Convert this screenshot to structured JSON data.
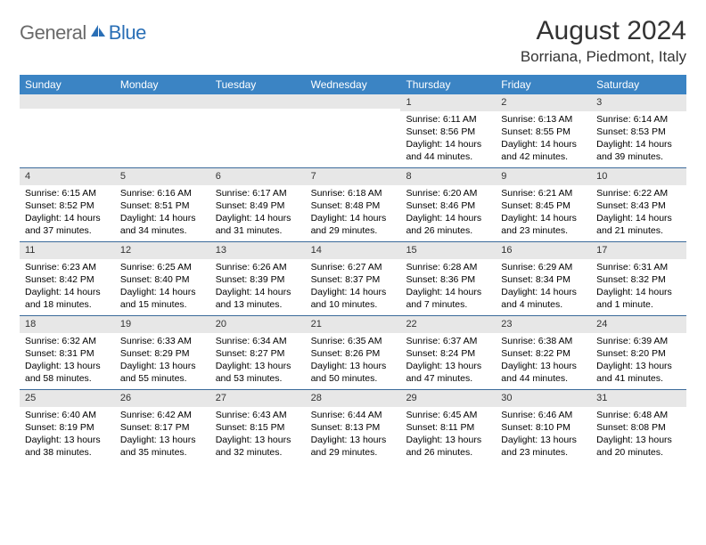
{
  "brand_gray": "General",
  "brand_blue": "Blue",
  "month_title": "August 2024",
  "location": "Borriana, Piedmont, Italy",
  "day_labels": [
    "Sunday",
    "Monday",
    "Tuesday",
    "Wednesday",
    "Thursday",
    "Friday",
    "Saturday"
  ],
  "colors": {
    "header_bg": "#3b84c4",
    "cell_num_bg": "#e7e7e7",
    "week_divider": "#3b6a9a",
    "logo_gray": "#6a6a6a",
    "logo_blue": "#2a6fb6"
  },
  "weeks": [
    [
      {
        "day": "",
        "sunrise": "",
        "sunset": "",
        "daylight": ""
      },
      {
        "day": "",
        "sunrise": "",
        "sunset": "",
        "daylight": ""
      },
      {
        "day": "",
        "sunrise": "",
        "sunset": "",
        "daylight": ""
      },
      {
        "day": "",
        "sunrise": "",
        "sunset": "",
        "daylight": ""
      },
      {
        "day": "1",
        "sunrise": "Sunrise: 6:11 AM",
        "sunset": "Sunset: 8:56 PM",
        "daylight": "Daylight: 14 hours and 44 minutes."
      },
      {
        "day": "2",
        "sunrise": "Sunrise: 6:13 AM",
        "sunset": "Sunset: 8:55 PM",
        "daylight": "Daylight: 14 hours and 42 minutes."
      },
      {
        "day": "3",
        "sunrise": "Sunrise: 6:14 AM",
        "sunset": "Sunset: 8:53 PM",
        "daylight": "Daylight: 14 hours and 39 minutes."
      }
    ],
    [
      {
        "day": "4",
        "sunrise": "Sunrise: 6:15 AM",
        "sunset": "Sunset: 8:52 PM",
        "daylight": "Daylight: 14 hours and 37 minutes."
      },
      {
        "day": "5",
        "sunrise": "Sunrise: 6:16 AM",
        "sunset": "Sunset: 8:51 PM",
        "daylight": "Daylight: 14 hours and 34 minutes."
      },
      {
        "day": "6",
        "sunrise": "Sunrise: 6:17 AM",
        "sunset": "Sunset: 8:49 PM",
        "daylight": "Daylight: 14 hours and 31 minutes."
      },
      {
        "day": "7",
        "sunrise": "Sunrise: 6:18 AM",
        "sunset": "Sunset: 8:48 PM",
        "daylight": "Daylight: 14 hours and 29 minutes."
      },
      {
        "day": "8",
        "sunrise": "Sunrise: 6:20 AM",
        "sunset": "Sunset: 8:46 PM",
        "daylight": "Daylight: 14 hours and 26 minutes."
      },
      {
        "day": "9",
        "sunrise": "Sunrise: 6:21 AM",
        "sunset": "Sunset: 8:45 PM",
        "daylight": "Daylight: 14 hours and 23 minutes."
      },
      {
        "day": "10",
        "sunrise": "Sunrise: 6:22 AM",
        "sunset": "Sunset: 8:43 PM",
        "daylight": "Daylight: 14 hours and 21 minutes."
      }
    ],
    [
      {
        "day": "11",
        "sunrise": "Sunrise: 6:23 AM",
        "sunset": "Sunset: 8:42 PM",
        "daylight": "Daylight: 14 hours and 18 minutes."
      },
      {
        "day": "12",
        "sunrise": "Sunrise: 6:25 AM",
        "sunset": "Sunset: 8:40 PM",
        "daylight": "Daylight: 14 hours and 15 minutes."
      },
      {
        "day": "13",
        "sunrise": "Sunrise: 6:26 AM",
        "sunset": "Sunset: 8:39 PM",
        "daylight": "Daylight: 14 hours and 13 minutes."
      },
      {
        "day": "14",
        "sunrise": "Sunrise: 6:27 AM",
        "sunset": "Sunset: 8:37 PM",
        "daylight": "Daylight: 14 hours and 10 minutes."
      },
      {
        "day": "15",
        "sunrise": "Sunrise: 6:28 AM",
        "sunset": "Sunset: 8:36 PM",
        "daylight": "Daylight: 14 hours and 7 minutes."
      },
      {
        "day": "16",
        "sunrise": "Sunrise: 6:29 AM",
        "sunset": "Sunset: 8:34 PM",
        "daylight": "Daylight: 14 hours and 4 minutes."
      },
      {
        "day": "17",
        "sunrise": "Sunrise: 6:31 AM",
        "sunset": "Sunset: 8:32 PM",
        "daylight": "Daylight: 14 hours and 1 minute."
      }
    ],
    [
      {
        "day": "18",
        "sunrise": "Sunrise: 6:32 AM",
        "sunset": "Sunset: 8:31 PM",
        "daylight": "Daylight: 13 hours and 58 minutes."
      },
      {
        "day": "19",
        "sunrise": "Sunrise: 6:33 AM",
        "sunset": "Sunset: 8:29 PM",
        "daylight": "Daylight: 13 hours and 55 minutes."
      },
      {
        "day": "20",
        "sunrise": "Sunrise: 6:34 AM",
        "sunset": "Sunset: 8:27 PM",
        "daylight": "Daylight: 13 hours and 53 minutes."
      },
      {
        "day": "21",
        "sunrise": "Sunrise: 6:35 AM",
        "sunset": "Sunset: 8:26 PM",
        "daylight": "Daylight: 13 hours and 50 minutes."
      },
      {
        "day": "22",
        "sunrise": "Sunrise: 6:37 AM",
        "sunset": "Sunset: 8:24 PM",
        "daylight": "Daylight: 13 hours and 47 minutes."
      },
      {
        "day": "23",
        "sunrise": "Sunrise: 6:38 AM",
        "sunset": "Sunset: 8:22 PM",
        "daylight": "Daylight: 13 hours and 44 minutes."
      },
      {
        "day": "24",
        "sunrise": "Sunrise: 6:39 AM",
        "sunset": "Sunset: 8:20 PM",
        "daylight": "Daylight: 13 hours and 41 minutes."
      }
    ],
    [
      {
        "day": "25",
        "sunrise": "Sunrise: 6:40 AM",
        "sunset": "Sunset: 8:19 PM",
        "daylight": "Daylight: 13 hours and 38 minutes."
      },
      {
        "day": "26",
        "sunrise": "Sunrise: 6:42 AM",
        "sunset": "Sunset: 8:17 PM",
        "daylight": "Daylight: 13 hours and 35 minutes."
      },
      {
        "day": "27",
        "sunrise": "Sunrise: 6:43 AM",
        "sunset": "Sunset: 8:15 PM",
        "daylight": "Daylight: 13 hours and 32 minutes."
      },
      {
        "day": "28",
        "sunrise": "Sunrise: 6:44 AM",
        "sunset": "Sunset: 8:13 PM",
        "daylight": "Daylight: 13 hours and 29 minutes."
      },
      {
        "day": "29",
        "sunrise": "Sunrise: 6:45 AM",
        "sunset": "Sunset: 8:11 PM",
        "daylight": "Daylight: 13 hours and 26 minutes."
      },
      {
        "day": "30",
        "sunrise": "Sunrise: 6:46 AM",
        "sunset": "Sunset: 8:10 PM",
        "daylight": "Daylight: 13 hours and 23 minutes."
      },
      {
        "day": "31",
        "sunrise": "Sunrise: 6:48 AM",
        "sunset": "Sunset: 8:08 PM",
        "daylight": "Daylight: 13 hours and 20 minutes."
      }
    ]
  ]
}
